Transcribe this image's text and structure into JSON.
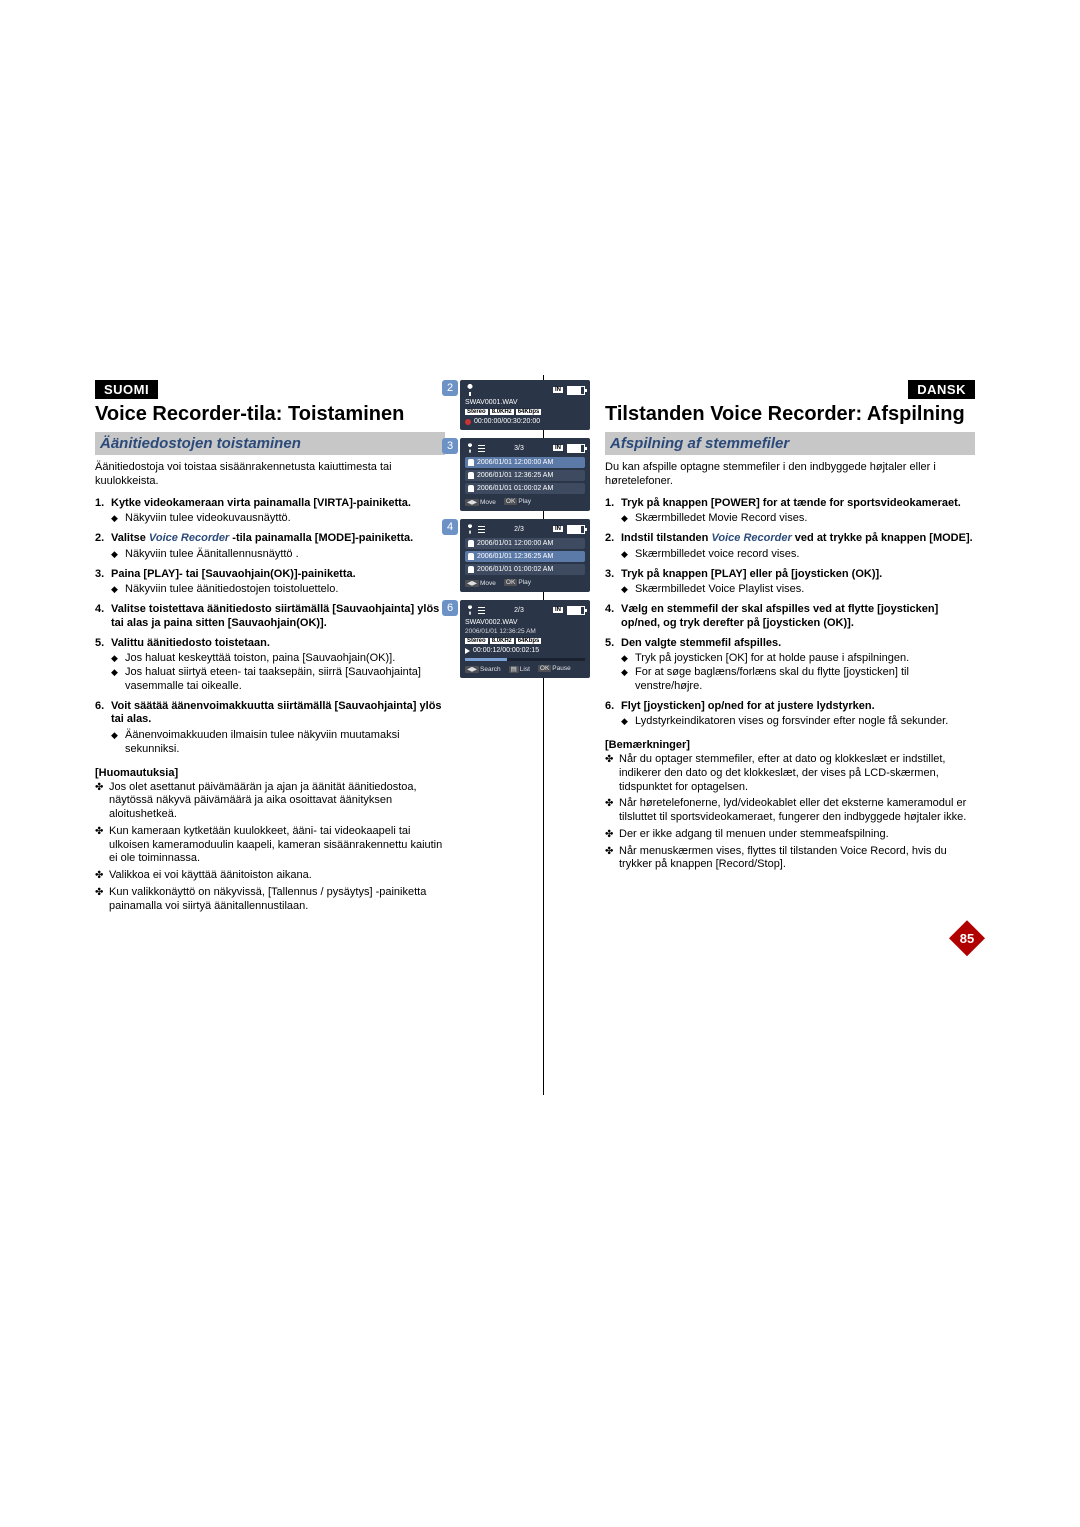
{
  "left": {
    "lang": "SUOMI",
    "title": "Voice Recorder-tila: Toistaminen",
    "subtitle": "Äänitiedostojen toistaminen",
    "intro": "Äänitiedostoja voi toistaa sisäänrakennetusta kaiuttimesta tai kuulokkeista.",
    "steps": [
      {
        "title": "Kytke videokameraan virta painamalla [VIRTA]-painiketta.",
        "subs": [
          "Näkyviin tulee videokuvausnäyttö."
        ]
      },
      {
        "title_pre": "Valitse ",
        "vr": "Voice Recorder",
        "title_post": " -tila painamalla [MODE]-painiketta.",
        "subs": [
          "Näkyviin tulee Äänitallennusnäyttö ."
        ]
      },
      {
        "title": "Paina [PLAY]- tai [Sauvaohjain(OK)]-painiketta.",
        "subs": [
          "Näkyviin tulee äänitiedostojen toistoluettelo."
        ]
      },
      {
        "title": "Valitse toistettava äänitiedosto siirtämällä [Sauvaohjainta] ylös tai alas ja paina sitten [Sauvaohjain(OK)]."
      },
      {
        "title": "Valittu äänitiedosto toistetaan.",
        "subs": [
          "Jos haluat keskeyttää toiston, paina [Sauvaohjain(OK)].",
          "Jos haluat siirtyä eteen- tai taaksepäin, siirrä [Sauvaohjainta] vasemmalle tai oikealle."
        ]
      },
      {
        "title": "Voit säätää äänenvoimakkuutta siirtämällä [Sauvaohjainta] ylös tai alas.",
        "subs": [
          "Äänenvoimakkuuden ilmaisin tulee näkyviin muutamaksi sekunniksi."
        ]
      }
    ],
    "notes_head": "[Huomautuksia]",
    "notes": [
      "Jos olet asettanut päivämäärän ja ajan ja äänität äänitiedostoa, näytössä näkyvä päivämäärä ja aika osoittavat äänityksen aloitushetkeä.",
      "Kun kameraan kytketään kuulokkeet, ääni- tai videokaapeli tai ulkoisen kameramoduulin kaapeli, kameran sisäänrakennettu kaiutin ei ole toiminnassa.",
      "Valikkoa ei voi käyttää äänitoiston aikana.",
      "Kun valikkonäyttö on näkyvissä, [Tallennus / pysäytys] -painiketta painamalla voi siirtyä äänitallennustilaan."
    ]
  },
  "right": {
    "lang": "DANSK",
    "title": "Tilstanden Voice Recorder: Afspilning",
    "subtitle": "Afspilning af stemmefiler",
    "intro": "Du kan afspille optagne stemmefiler i den indbyggede højtaler eller i høretelefoner.",
    "steps": [
      {
        "title": "Tryk på knappen [POWER] for at tænde for sportsvideokameraet.",
        "subs": [
          "Skærmbilledet Movie Record vises."
        ]
      },
      {
        "title_pre": "Indstil tilstanden ",
        "vr": "Voice Recorder",
        "title_post": " ved at trykke på knappen [MODE].",
        "subs": [
          "Skærmbilledet voice record vises."
        ]
      },
      {
        "title": "Tryk på knappen [PLAY] eller på [joysticken (OK)].",
        "subs": [
          "Skærmbilledet Voice Playlist vises."
        ]
      },
      {
        "title": "Vælg en stemmefil der skal afspilles ved at flytte [joysticken] op/ned, og tryk derefter på [joysticken (OK)]."
      },
      {
        "title": "Den valgte stemmefil afspilles.",
        "subs": [
          "Tryk på joysticken [OK] for at holde pause i afspilningen.",
          "For at søge baglæns/forlæns skal du flytte [joysticken] til venstre/højre."
        ]
      },
      {
        "title": "Flyt [joysticken] op/ned for at justere lydstyrken.",
        "subs": [
          "Lydstyrkeindikatoren vises og forsvinder efter nogle få sekunder."
        ]
      }
    ],
    "notes_head": "[Bemærkninger]",
    "notes": [
      "Når du optager stemmefiler, efter at dato og klokkeslæt er indstillet, indikerer den dato og det klokkeslæt, der vises på LCD-skærmen, tidspunktet for optagelsen.",
      "Når høretelefonerne, lyd/videokablet eller det eksterne kameramodul er tilsluttet til sportsvideokameraet, fungerer den indbyggede højtaler ikke.",
      "Der er ikke adgang til menuen under stemmeafspilning.",
      "Når menuskærmen vises, flyttes til tilstanden Voice Record, hvis du trykker på knappen [Record/Stop]."
    ]
  },
  "page_num": "85",
  "shots": {
    "s2": {
      "num": "2",
      "filename": "SWAV0001.WAV",
      "codec": [
        "Stereo",
        "8.0KHz",
        "64Kbps"
      ],
      "time": "00:00:00/00:30:20:00",
      "in": "IN"
    },
    "s3": {
      "num": "3",
      "count": "3/3",
      "in": "IN",
      "rows": [
        "2006/01/01 12:00:00 AM",
        "2006/01/01 12:36:25 AM",
        "2006/01/01 01:00:02 AM"
      ],
      "sel": 0,
      "foot_move": "Move",
      "foot_play": "Play"
    },
    "s4": {
      "num": "4",
      "count": "2/3",
      "in": "IN",
      "rows": [
        "2006/01/01 12:00:00 AM",
        "2006/01/01 12:36:25 AM",
        "2006/01/01 01:00:02 AM"
      ],
      "sel": 1,
      "foot_move": "Move",
      "foot_play": "Play"
    },
    "s6": {
      "num": "6",
      "count": "2/3",
      "in": "IN",
      "filename": "SWAV0002.WAV",
      "subtitle": "2006/01/01 12:36:25 AM",
      "codec": [
        "Stereo",
        "8.0KHz",
        "64Kbps"
      ],
      "time": "00:00:12/00:00:02:15",
      "progress_pct": 35,
      "foot_search": "Search",
      "foot_list": "List",
      "foot_pause": "Pause"
    }
  },
  "colors": {
    "shot_bg": "#2a3548",
    "shot_row": "#3d4a5f",
    "shot_sel": "#5b7aa8",
    "accent": "#6d93c6",
    "subtitle_bg": "#c7c7c7",
    "subtitle_fg": "#2b4a7a",
    "badge": "#b00000"
  }
}
